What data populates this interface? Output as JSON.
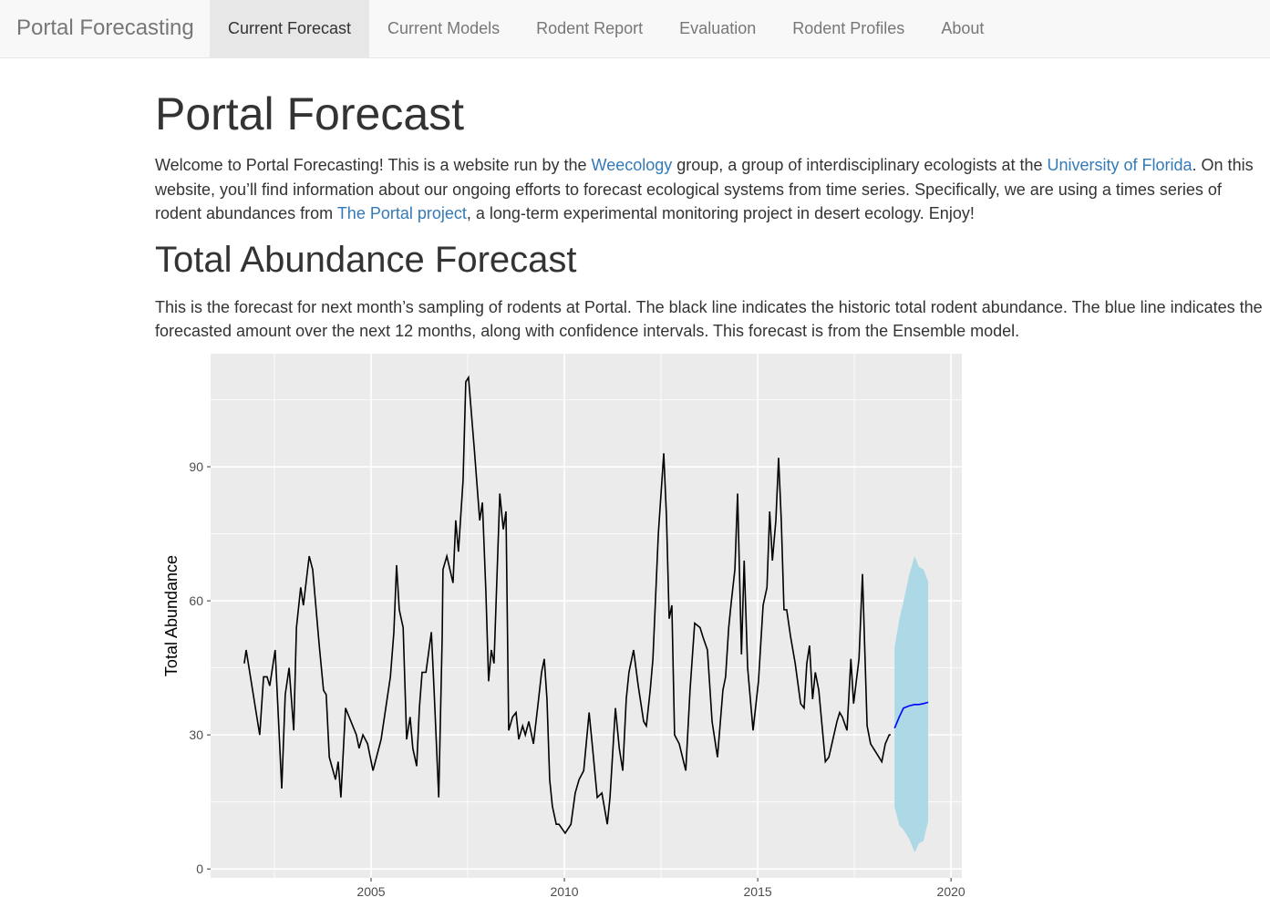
{
  "navbar": {
    "brand": "Portal Forecasting",
    "items": [
      "Current Forecast",
      "Current Models",
      "Rodent Report",
      "Evaluation",
      "Rodent Profiles",
      "About"
    ],
    "active": 0
  },
  "content": {
    "title": "Portal Forecast",
    "intro": [
      "Welcome to Portal Forecasting! This is a website run by the ",
      "Weecology",
      " group, a group of interdisciplinary ecologists at the ",
      "University of Florida",
      ". On this website, you’ll find information about our ongoing efforts to forecast ecological systems from time series. Specifically, we are using a times series of rodent abundances from ",
      "The Portal project",
      ", a long-term experimental monitoring project in desert ecology. Enjoy!"
    ],
    "intro_links": [
      1,
      3,
      5
    ],
    "section_title": "Total Abundance Forecast",
    "section_text": "This is the forecast for next month’s sampling of rodents at Portal. The black line indicates the historic total rodent abundance. The blue line indicates the forecasted amount over the next 12 months, along with confidence intervals. This forecast is from the Ensemble model."
  },
  "chart_data": {
    "type": "line",
    "ylabel": "Total Abundance",
    "xlim": [
      2000.85,
      2020.28
    ],
    "ylim": [
      -2,
      115.3
    ],
    "xticks": [
      2005,
      2010,
      2015,
      2020
    ],
    "yticks": [
      0,
      30,
      60,
      90
    ],
    "grid": true,
    "minor_grid": true,
    "series": [
      {
        "color": "#000000",
        "x": [
          2001.72,
          2001.77,
          2002.12,
          2002.22,
          2002.31,
          2002.38,
          2002.52,
          2002.69,
          2002.78,
          2002.88,
          2003.0,
          2003.07,
          2003.18,
          2003.25,
          2003.4,
          2003.49,
          2003.56,
          2003.66,
          2003.77,
          2003.84,
          2003.92,
          2004.08,
          2004.15,
          2004.22,
          2004.34,
          2004.62,
          2004.69,
          2004.79,
          2004.91,
          2005.05,
          2005.26,
          2005.5,
          2005.59,
          2005.66,
          2005.73,
          2005.83,
          2005.92,
          2006.01,
          2006.08,
          2006.18,
          2006.25,
          2006.32,
          2006.42,
          2006.56,
          2006.63,
          2006.75,
          2006.84,
          2006.86,
          2006.96,
          2007.12,
          2007.19,
          2007.26,
          2007.38,
          2007.45,
          2007.52,
          2007.67,
          2007.81,
          2007.88,
          2007.97,
          2008.04,
          2008.11,
          2008.18,
          2008.33,
          2008.42,
          2008.49,
          2008.56,
          2008.66,
          2008.75,
          2008.82,
          2008.92,
          2008.99,
          2009.08,
          2009.2,
          2009.32,
          2009.41,
          2009.48,
          2009.55,
          2009.62,
          2009.69,
          2009.79,
          2009.86,
          2010.02,
          2010.17,
          2010.28,
          2010.38,
          2010.5,
          2010.64,
          2010.73,
          2010.85,
          2010.97,
          2011.11,
          2011.18,
          2011.32,
          2011.42,
          2011.51,
          2011.6,
          2011.67,
          2011.79,
          2011.91,
          2012.05,
          2012.12,
          2012.22,
          2012.29,
          2012.43,
          2012.5,
          2012.57,
          2012.64,
          2012.71,
          2012.78,
          2012.85,
          2012.97,
          2013.14,
          2013.25,
          2013.37,
          2013.51,
          2013.58,
          2013.7,
          2013.82,
          2013.96,
          2014.1,
          2014.17,
          2014.25,
          2014.32,
          2014.41,
          2014.48,
          2014.58,
          2014.65,
          2014.74,
          2014.88,
          2015.02,
          2015.14,
          2015.24,
          2015.31,
          2015.38,
          2015.47,
          2015.54,
          2015.61,
          2015.68,
          2015.75,
          2015.85,
          2015.97,
          2016.11,
          2016.2,
          2016.27,
          2016.34,
          2016.42,
          2016.49,
          2016.58,
          2016.75,
          2016.84,
          2017.05,
          2017.12,
          2017.19,
          2017.31,
          2017.41,
          2017.48,
          2017.55,
          2017.62,
          2017.71,
          2017.83,
          2017.92,
          2018.21,
          2018.3,
          2018.4,
          2018.44
        ],
        "values": [
          46,
          49,
          30,
          43,
          43,
          41,
          49,
          18,
          39,
          45,
          31,
          54,
          63,
          59,
          70,
          67,
          60,
          50,
          40,
          39,
          25,
          20,
          24,
          16,
          36,
          30,
          27,
          30,
          28,
          22,
          29,
          43,
          53,
          68,
          58,
          54,
          29,
          34,
          27,
          23,
          36,
          44,
          44,
          53,
          40,
          16,
          52,
          67,
          70,
          64,
          78,
          71,
          87,
          109,
          110,
          94,
          78,
          82,
          62,
          42,
          49,
          46,
          84,
          76,
          80,
          31,
          34,
          35,
          29,
          32,
          30,
          33,
          28,
          37,
          44,
          47,
          38,
          20,
          14,
          10,
          10,
          8,
          10,
          17,
          20,
          22,
          35,
          27,
          16,
          17,
          10,
          16,
          36,
          27,
          22,
          38,
          44,
          49,
          41,
          33,
          32,
          40,
          47,
          75,
          84,
          93,
          79,
          56,
          59,
          30,
          28,
          22,
          40,
          55,
          54,
          52,
          49,
          33,
          25,
          40,
          43,
          54,
          60,
          67,
          84,
          48,
          69,
          45,
          31,
          42,
          59,
          63,
          80,
          69,
          78,
          92,
          78,
          58,
          58,
          52,
          46,
          37,
          36,
          46,
          50,
          38,
          44,
          40,
          24,
          25,
          33,
          35,
          34,
          31,
          47,
          37,
          42,
          47,
          66,
          32,
          28,
          24,
          28,
          30,
          30
        ]
      },
      {
        "color": "#0000ff",
        "band_color": "#add8e6",
        "x": [
          2018.54,
          2018.66,
          2018.77,
          2018.92,
          2019.06,
          2019.17,
          2019.29,
          2019.41
        ],
        "values": [
          31.5,
          34,
          36,
          36.5,
          36.8,
          36.8,
          37,
          37.3
        ],
        "lower": [
          13.9,
          9.8,
          8.8,
          6.7,
          3.7,
          5.7,
          6.3,
          10.8
        ],
        "upper": [
          49.6,
          55.7,
          59.8,
          65.9,
          70,
          67.6,
          67,
          64.3
        ]
      }
    ]
  }
}
